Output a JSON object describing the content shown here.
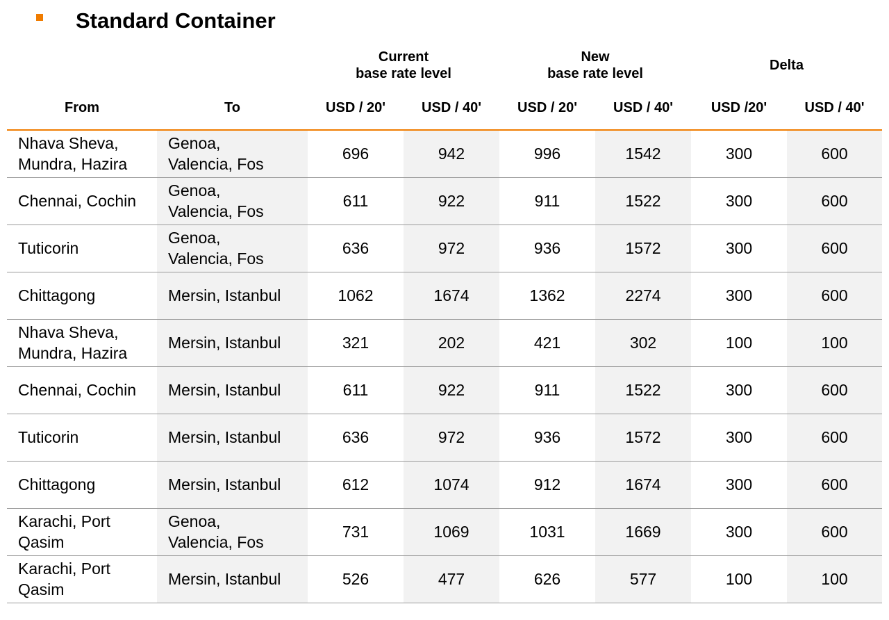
{
  "title": "Standard Container",
  "colors": {
    "accent": "#f07c00",
    "shade": "#f2f2f2",
    "rule": "#9a9a9a"
  },
  "table": {
    "group_headers": {
      "current": [
        "Current",
        "base rate level"
      ],
      "new": [
        "New",
        "base rate level"
      ],
      "delta": "Delta"
    },
    "column_headers": {
      "from": "From",
      "to": "To",
      "cur20": "USD / 20'",
      "cur40": "USD / 40'",
      "new20": "USD / 20'",
      "new40": "USD / 40'",
      "delta20": "USD /20'",
      "delta40": "USD / 40'"
    },
    "rows": [
      {
        "from": [
          "Nhava Sheva,",
          "Mundra, Hazira"
        ],
        "to": [
          "Genoa,",
          "Valencia, Fos"
        ],
        "cur20": "696",
        "cur40": "942",
        "new20": "996",
        "new40": "1542",
        "delta20": "300",
        "delta40": "600"
      },
      {
        "from": [
          "Chennai, Cochin"
        ],
        "to": [
          "Genoa,",
          "Valencia, Fos"
        ],
        "cur20": "611",
        "cur40": "922",
        "new20": "911",
        "new40": "1522",
        "delta20": "300",
        "delta40": "600"
      },
      {
        "from": [
          "Tuticorin"
        ],
        "to": [
          "Genoa,",
          "Valencia, Fos"
        ],
        "cur20": "636",
        "cur40": "972",
        "new20": "936",
        "new40": "1572",
        "delta20": "300",
        "delta40": "600"
      },
      {
        "from": [
          "Chittagong"
        ],
        "to": [
          "Mersin, Istanbul"
        ],
        "cur20": "1062",
        "cur40": "1674",
        "new20": "1362",
        "new40": "2274",
        "delta20": "300",
        "delta40": "600"
      },
      {
        "from": [
          "Nhava Sheva,",
          "Mundra, Hazira"
        ],
        "to": [
          "Mersin, Istanbul"
        ],
        "cur20": "321",
        "cur40": "202",
        "new20": "421",
        "new40": "302",
        "delta20": "100",
        "delta40": "100"
      },
      {
        "from": [
          "Chennai, Cochin"
        ],
        "to": [
          "Mersin, Istanbul"
        ],
        "cur20": "611",
        "cur40": "922",
        "new20": "911",
        "new40": "1522",
        "delta20": "300",
        "delta40": "600"
      },
      {
        "from": [
          "Tuticorin"
        ],
        "to": [
          "Mersin, Istanbul"
        ],
        "cur20": "636",
        "cur40": "972",
        "new20": "936",
        "new40": "1572",
        "delta20": "300",
        "delta40": "600"
      },
      {
        "from": [
          "Chittagong"
        ],
        "to": [
          "Mersin, Istanbul"
        ],
        "cur20": "612",
        "cur40": "1074",
        "new20": "912",
        "new40": "1674",
        "delta20": "300",
        "delta40": "600"
      },
      {
        "from": [
          "Karachi, Port",
          "Qasim"
        ],
        "to": [
          "Genoa,",
          "Valencia, Fos"
        ],
        "cur20": "731",
        "cur40": "1069",
        "new20": "1031",
        "new40": "1669",
        "delta20": "300",
        "delta40": "600"
      },
      {
        "from": [
          "Karachi, Port",
          "Qasim"
        ],
        "to": [
          "Mersin, Istanbul"
        ],
        "cur20": "526",
        "cur40": "477",
        "new20": "626",
        "new40": "577",
        "delta20": "100",
        "delta40": "100"
      }
    ]
  }
}
